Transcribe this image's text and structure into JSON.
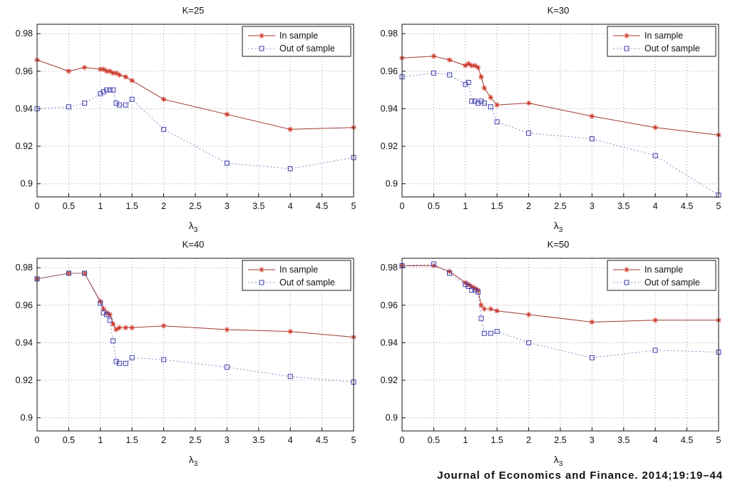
{
  "page": {
    "citation": "Journal of Economics and Finance. 2014;19:19–44"
  },
  "chart_data": [
    {
      "type": "line",
      "title": "K=25",
      "xlabel_main": "λ",
      "xlabel_sub": "3",
      "xlim": [
        0,
        5
      ],
      "ylim": [
        0.893,
        0.985
      ],
      "xticks": [
        0,
        0.5,
        1,
        1.5,
        2,
        2.5,
        3,
        3.5,
        4,
        4.5,
        5
      ],
      "yticks": [
        0.9,
        0.92,
        0.94,
        0.96,
        0.98
      ],
      "grid": true,
      "legend_position": "top-right",
      "x": [
        0,
        0.5,
        0.75,
        1,
        1.05,
        1.1,
        1.15,
        1.2,
        1.25,
        1.3,
        1.4,
        1.5,
        2,
        3,
        4,
        5
      ],
      "series": [
        {
          "name": "In sample",
          "marker": "asterisk",
          "line": "solid",
          "color": "#9e3a34",
          "marker_color": "#cc3322",
          "values": [
            0.966,
            0.96,
            0.962,
            0.961,
            0.961,
            0.96,
            0.96,
            0.959,
            0.959,
            0.958,
            0.957,
            0.955,
            0.945,
            0.937,
            0.929,
            0.93
          ]
        },
        {
          "name": "Out of sample",
          "marker": "square",
          "line": "dotted",
          "color": "#8888c8",
          "marker_color": "#4040b0",
          "values": [
            0.94,
            0.941,
            0.943,
            0.948,
            0.949,
            0.95,
            0.95,
            0.95,
            0.943,
            0.942,
            0.942,
            0.945,
            0.929,
            0.911,
            0.908,
            0.914
          ]
        }
      ]
    },
    {
      "type": "line",
      "title": "K=30",
      "xlabel_main": "λ",
      "xlabel_sub": "3",
      "xlim": [
        0,
        5
      ],
      "ylim": [
        0.893,
        0.985
      ],
      "xticks": [
        0,
        0.5,
        1,
        1.5,
        2,
        2.5,
        3,
        3.5,
        4,
        4.5,
        5
      ],
      "yticks": [
        0.9,
        0.92,
        0.94,
        0.96,
        0.98
      ],
      "grid": true,
      "legend_position": "top-right",
      "x": [
        0,
        0.5,
        0.75,
        1,
        1.05,
        1.1,
        1.15,
        1.2,
        1.25,
        1.3,
        1.4,
        1.5,
        2,
        3,
        4,
        5
      ],
      "series": [
        {
          "name": "In sample",
          "marker": "asterisk",
          "line": "solid",
          "color": "#9e3a34",
          "marker_color": "#cc3322",
          "values": [
            0.967,
            0.968,
            0.966,
            0.963,
            0.964,
            0.963,
            0.963,
            0.962,
            0.957,
            0.951,
            0.946,
            0.942,
            0.943,
            0.936,
            0.93,
            0.926
          ]
        },
        {
          "name": "Out of sample",
          "marker": "square",
          "line": "dotted",
          "color": "#8888c8",
          "marker_color": "#4040b0",
          "values": [
            0.957,
            0.959,
            0.958,
            0.953,
            0.954,
            0.944,
            0.944,
            0.943,
            0.944,
            0.943,
            0.941,
            0.933,
            0.927,
            0.924,
            0.915,
            0.894
          ]
        }
      ]
    },
    {
      "type": "line",
      "title": "K=40",
      "xlabel_main": "λ",
      "xlabel_sub": "3",
      "xlim": [
        0,
        5
      ],
      "ylim": [
        0.893,
        0.985
      ],
      "xticks": [
        0,
        0.5,
        1,
        1.5,
        2,
        2.5,
        3,
        3.5,
        4,
        4.5,
        5
      ],
      "yticks": [
        0.9,
        0.92,
        0.94,
        0.96,
        0.98
      ],
      "grid": true,
      "legend_position": "top-right",
      "x": [
        0,
        0.5,
        0.75,
        1,
        1.05,
        1.1,
        1.15,
        1.2,
        1.25,
        1.3,
        1.4,
        1.5,
        2,
        3,
        4,
        5
      ],
      "series": [
        {
          "name": "In sample",
          "marker": "asterisk",
          "line": "solid",
          "color": "#9e3a34",
          "marker_color": "#cc3322",
          "values": [
            0.974,
            0.977,
            0.977,
            0.962,
            0.958,
            0.956,
            0.955,
            0.95,
            0.947,
            0.948,
            0.948,
            0.948,
            0.949,
            0.947,
            0.946,
            0.943
          ]
        },
        {
          "name": "Out of sample",
          "marker": "square",
          "line": "dotted",
          "color": "#8888c8",
          "marker_color": "#4040b0",
          "values": [
            0.974,
            0.977,
            0.977,
            0.961,
            0.956,
            0.955,
            0.952,
            0.941,
            0.93,
            0.929,
            0.929,
            0.932,
            0.931,
            0.927,
            0.922,
            0.919
          ]
        }
      ]
    },
    {
      "type": "line",
      "title": "K=50",
      "xlabel_main": "λ",
      "xlabel_sub": "3",
      "xlim": [
        0,
        5
      ],
      "ylim": [
        0.893,
        0.985
      ],
      "xticks": [
        0,
        0.5,
        1,
        1.5,
        2,
        2.5,
        3,
        3.5,
        4,
        4.5,
        5
      ],
      "yticks": [
        0.9,
        0.92,
        0.94,
        0.96,
        0.98
      ],
      "grid": true,
      "legend_position": "top-right",
      "x": [
        0,
        0.5,
        0.75,
        1,
        1.05,
        1.1,
        1.15,
        1.2,
        1.25,
        1.3,
        1.4,
        1.5,
        2,
        3,
        4,
        5
      ],
      "series": [
        {
          "name": "In sample",
          "marker": "asterisk",
          "line": "solid",
          "color": "#9e3a34",
          "marker_color": "#cc3322",
          "values": [
            0.981,
            0.981,
            0.978,
            0.972,
            0.971,
            0.97,
            0.969,
            0.968,
            0.96,
            0.958,
            0.958,
            0.957,
            0.955,
            0.951,
            0.952,
            0.952
          ]
        },
        {
          "name": "Out of sample",
          "marker": "square",
          "line": "dotted",
          "color": "#8888c8",
          "marker_color": "#4040b0",
          "values": [
            0.981,
            0.982,
            0.977,
            0.971,
            0.97,
            0.968,
            0.968,
            0.967,
            0.953,
            0.945,
            0.945,
            0.946,
            0.94,
            0.932,
            0.936,
            0.935
          ]
        }
      ]
    }
  ]
}
